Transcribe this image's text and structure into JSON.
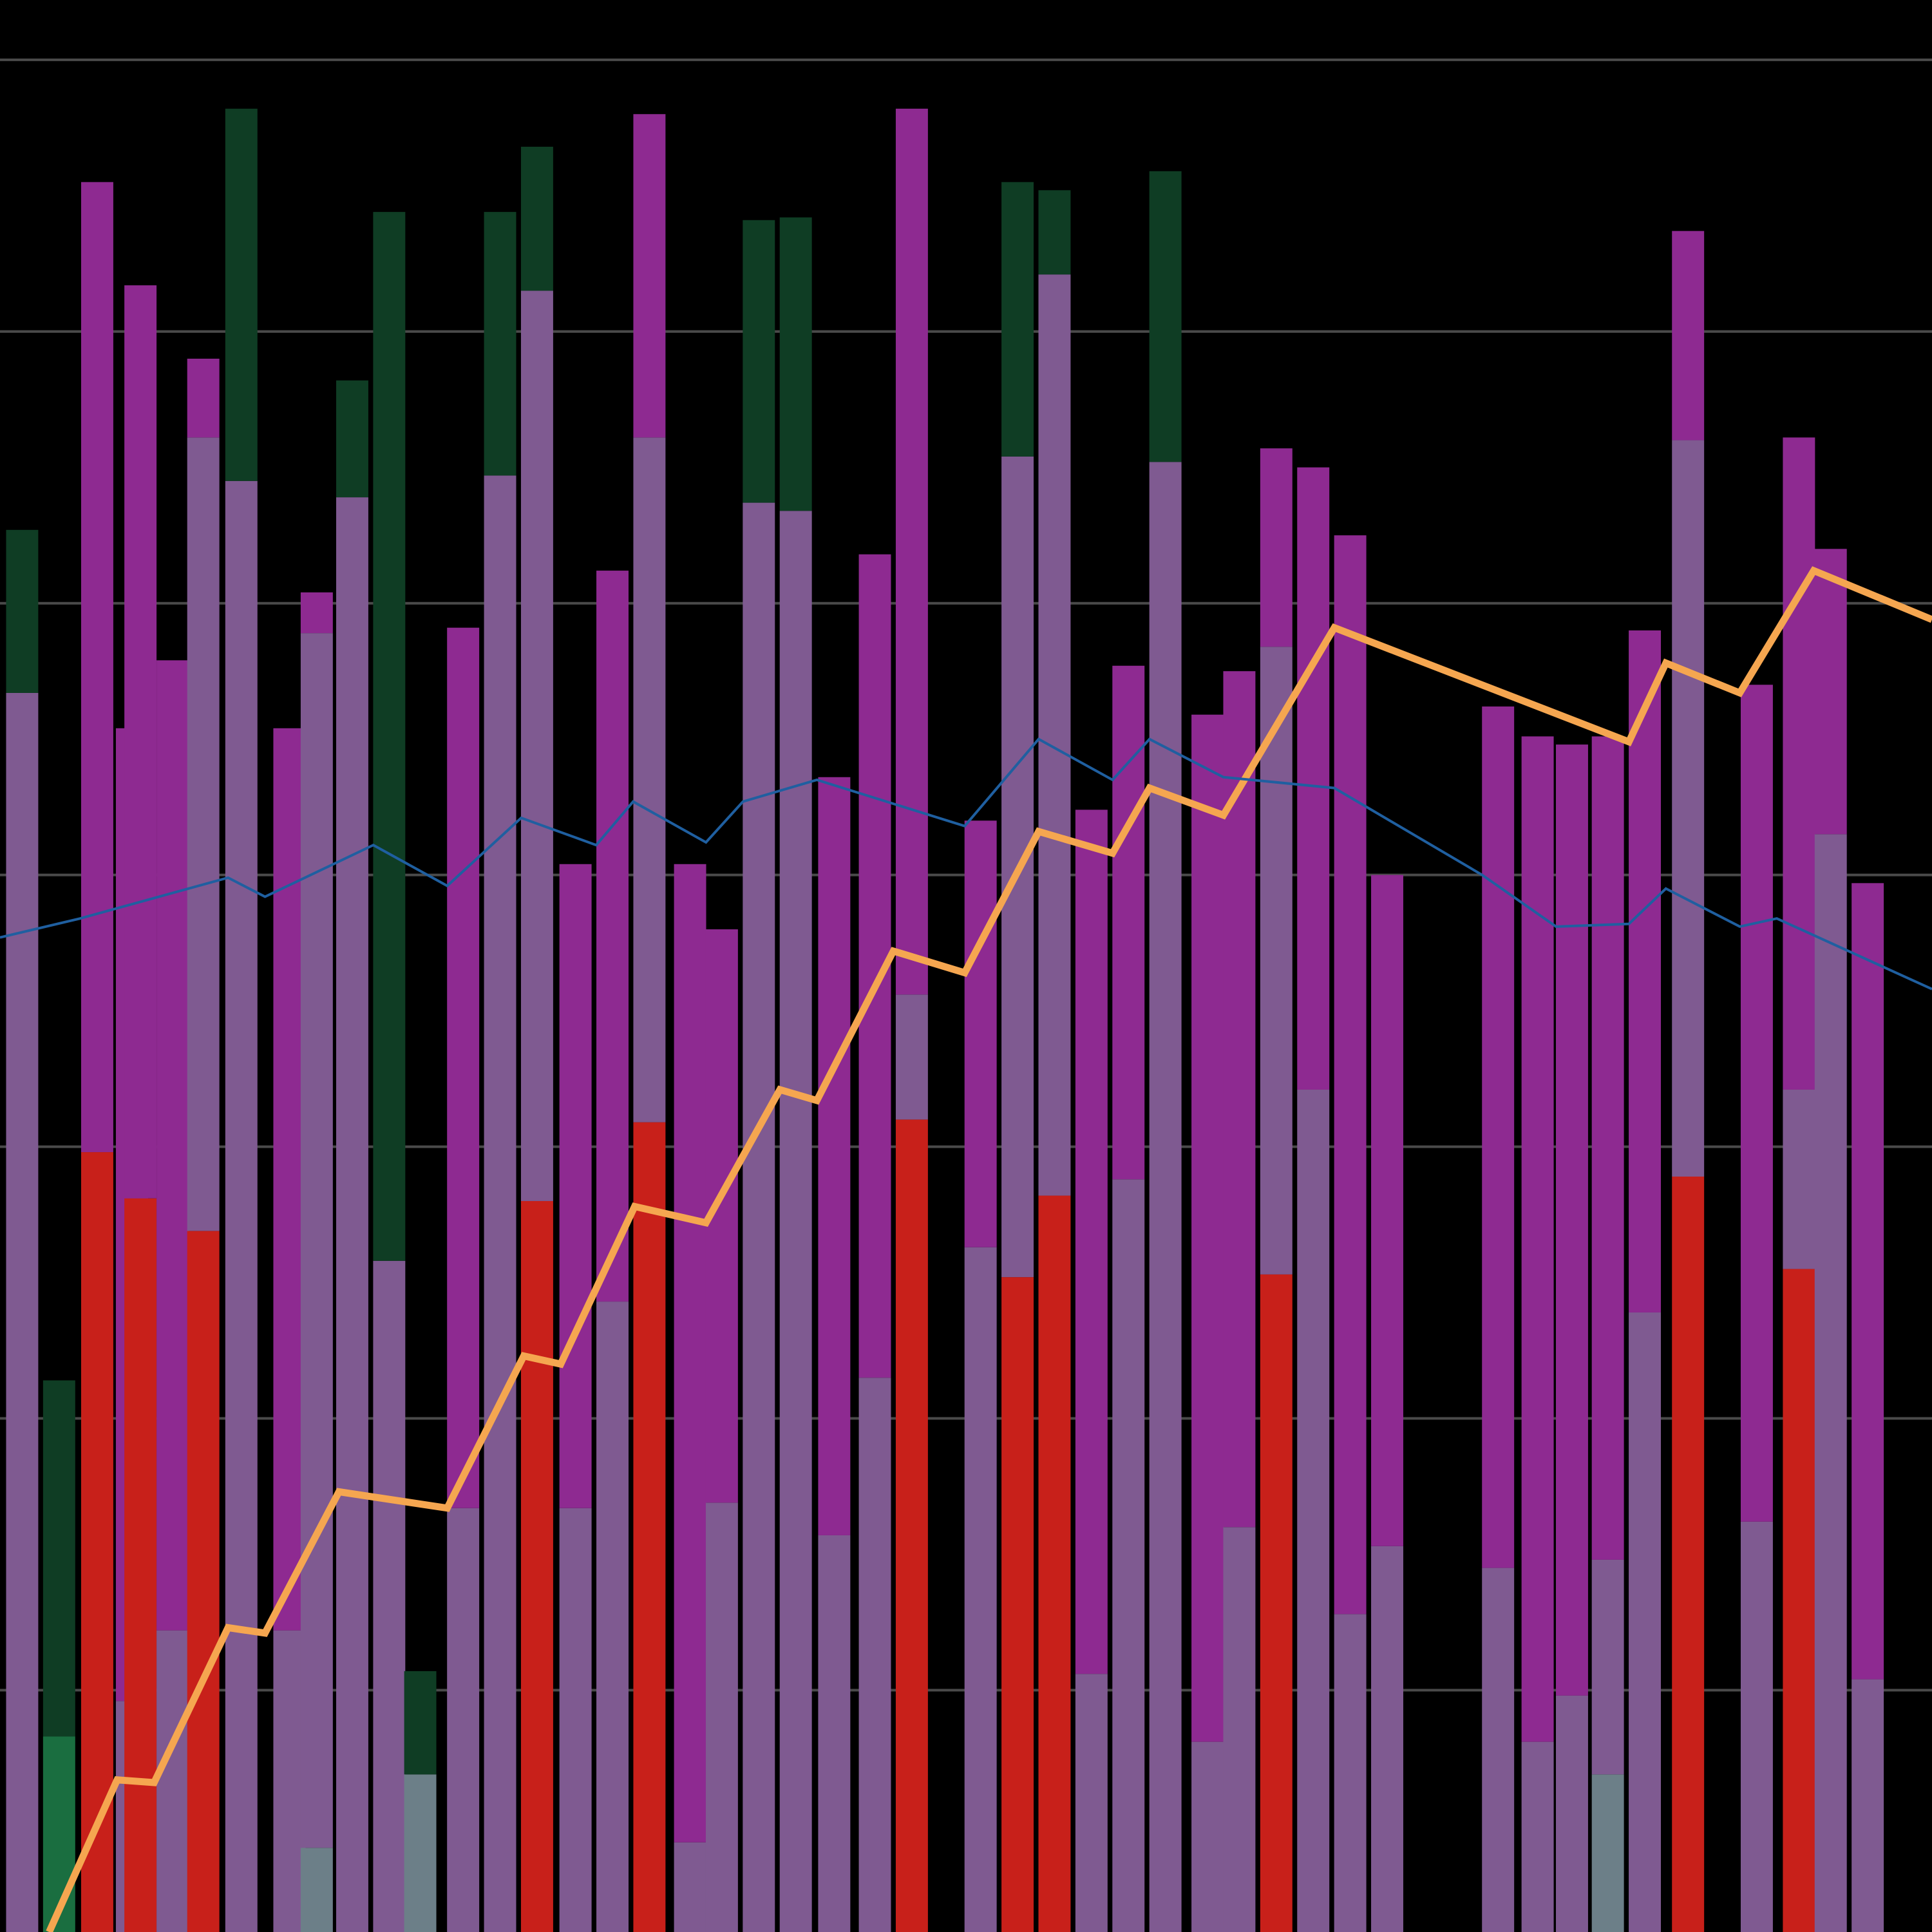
{
  "chart_data": {
    "type": "bar",
    "stacked": true,
    "title": "",
    "xlabel": "",
    "ylabel": "",
    "xlim": [
      0,
      52.27
    ],
    "ylim": [
      0.11,
      7.22
    ],
    "grid": {
      "horizontal": true,
      "values": [
        1,
        2,
        3,
        4,
        5,
        6,
        7
      ],
      "color": "#4a4a4a"
    },
    "background": "#000000",
    "colors": {
      "red": "#c8201a",
      "mauve": "#7f5a91",
      "magenta": "#8e2a91",
      "dark_green": "#0f3d24",
      "green": "#1a6e40",
      "grey": "#6c7f88",
      "orange_line": "#f5a650",
      "blue_line": "#1f5fa0"
    },
    "bar_width": 0.87,
    "bars": [
      {
        "x": 0.6,
        "segments": [
          [
            "mauve",
            4.67
          ],
          [
            "dark_green",
            5.27
          ]
        ]
      },
      {
        "x": 1.6,
        "segments": [
          [
            "green",
            0.83
          ],
          [
            "dark_green",
            2.14
          ]
        ]
      },
      {
        "x": 2.63,
        "segments": [
          [
            "red",
            2.98
          ],
          [
            "magenta",
            6.55
          ]
        ]
      },
      {
        "x": 3.57,
        "segments": [
          [
            "mauve",
            0.96
          ],
          [
            "magenta",
            4.54
          ]
        ]
      },
      {
        "x": 3.8,
        "segments": [
          [
            "red",
            2.81
          ],
          [
            "magenta",
            6.17
          ]
        ]
      },
      {
        "x": 4.67,
        "segments": [
          [
            "mauve",
            1.22
          ],
          [
            "magenta",
            4.79
          ]
        ]
      },
      {
        "x": 5.5,
        "segments": [
          [
            "red",
            2.69
          ],
          [
            "mauve",
            5.61
          ],
          [
            "magenta",
            5.9
          ]
        ]
      },
      {
        "x": 6.53,
        "segments": [
          [
            "mauve",
            5.45
          ],
          [
            "dark_green",
            6.82
          ]
        ]
      },
      {
        "x": 7.83,
        "segments": [
          [
            "mauve",
            1.22
          ],
          [
            "magenta",
            4.54
          ]
        ]
      },
      {
        "x": 8.57,
        "segments": [
          [
            "grey",
            0.42
          ],
          [
            "mauve",
            4.89
          ],
          [
            "magenta",
            5.04
          ]
        ]
      },
      {
        "x": 9.53,
        "segments": [
          [
            "mauve",
            5.39
          ],
          [
            "dark_green",
            5.82
          ]
        ]
      },
      {
        "x": 10.53,
        "segments": [
          [
            "mauve",
            2.58
          ],
          [
            "dark_green",
            6.44
          ]
        ]
      },
      {
        "x": 11.37,
        "segments": [
          [
            "grey",
            0.69
          ],
          [
            "dark_green",
            1.07
          ]
        ]
      },
      {
        "x": 12.53,
        "segments": [
          [
            "mauve",
            1.67
          ],
          [
            "magenta",
            4.91
          ]
        ]
      },
      {
        "x": 13.53,
        "segments": [
          [
            "mauve",
            5.47
          ],
          [
            "dark_green",
            6.44
          ]
        ]
      },
      {
        "x": 14.53,
        "segments": [
          [
            "red",
            2.8
          ],
          [
            "mauve",
            6.15
          ],
          [
            "dark_green",
            6.68
          ]
        ]
      },
      {
        "x": 15.57,
        "segments": [
          [
            "mauve",
            1.67
          ],
          [
            "magenta",
            4.04
          ]
        ]
      },
      {
        "x": 16.57,
        "segments": [
          [
            "mauve",
            2.43
          ],
          [
            "magenta",
            5.12
          ]
        ]
      },
      {
        "x": 17.57,
        "segments": [
          [
            "red",
            3.09
          ],
          [
            "mauve",
            5.61
          ],
          [
            "magenta",
            6.8
          ]
        ]
      },
      {
        "x": 18.67,
        "segments": [
          [
            "mauve",
            0.44
          ],
          [
            "magenta",
            4.04
          ]
        ]
      },
      {
        "x": 19.53,
        "segments": [
          [
            "mauve",
            1.69
          ],
          [
            "magenta",
            3.8
          ]
        ]
      },
      {
        "x": 20.53,
        "segments": [
          [
            "mauve",
            5.37
          ],
          [
            "dark_green",
            6.41
          ]
        ]
      },
      {
        "x": 21.53,
        "segments": [
          [
            "mauve",
            5.34
          ],
          [
            "dark_green",
            6.42
          ]
        ]
      },
      {
        "x": 22.57,
        "segments": [
          [
            "mauve",
            1.57
          ],
          [
            "magenta",
            4.36
          ]
        ]
      },
      {
        "x": 23.67,
        "segments": [
          [
            "mauve",
            2.15
          ],
          [
            "magenta",
            5.18
          ]
        ]
      },
      {
        "x": 24.67,
        "segments": [
          [
            "red",
            3.1
          ],
          [
            "mauve",
            3.56
          ],
          [
            "magenta",
            6.82
          ]
        ]
      },
      {
        "x": 26.53,
        "segments": [
          [
            "mauve",
            2.63
          ],
          [
            "magenta",
            4.2
          ]
        ]
      },
      {
        "x": 27.53,
        "segments": [
          [
            "red",
            2.52
          ],
          [
            "mauve",
            5.54
          ],
          [
            "dark_green",
            6.55
          ]
        ]
      },
      {
        "x": 28.53,
        "segments": [
          [
            "red",
            2.82
          ],
          [
            "mauve",
            6.21
          ],
          [
            "dark_green",
            6.52
          ]
        ]
      },
      {
        "x": 29.53,
        "segments": [
          [
            "mauve",
            1.06
          ],
          [
            "magenta",
            4.24
          ]
        ]
      },
      {
        "x": 30.53,
        "segments": [
          [
            "mauve",
            2.88
          ],
          [
            "magenta",
            4.77
          ]
        ]
      },
      {
        "x": 31.53,
        "segments": [
          [
            "mauve",
            5.52
          ],
          [
            "dark_green",
            6.59
          ]
        ]
      },
      {
        "x": 32.67,
        "segments": [
          [
            "mauve",
            0.81
          ],
          [
            "magenta",
            4.59
          ]
        ]
      },
      {
        "x": 33.53,
        "segments": [
          [
            "mauve",
            1.6
          ],
          [
            "magenta",
            4.75
          ]
        ]
      },
      {
        "x": 34.53,
        "segments": [
          [
            "red",
            2.53
          ],
          [
            "mauve",
            4.84
          ],
          [
            "magenta",
            5.57
          ]
        ]
      },
      {
        "x": 35.53,
        "segments": [
          [
            "mauve",
            3.21
          ],
          [
            "magenta",
            5.5
          ]
        ]
      },
      {
        "x": 36.53,
        "segments": [
          [
            "mauve",
            1.28
          ],
          [
            "magenta",
            5.25
          ]
        ]
      },
      {
        "x": 37.53,
        "segments": [
          [
            "mauve",
            1.53
          ],
          [
            "magenta",
            4.0
          ]
        ]
      },
      {
        "x": 40.53,
        "segments": [
          [
            "mauve",
            1.45
          ],
          [
            "magenta",
            4.62
          ]
        ]
      },
      {
        "x": 41.6,
        "segments": [
          [
            "mauve",
            0.81
          ],
          [
            "magenta",
            4.51
          ]
        ]
      },
      {
        "x": 42.53,
        "segments": [
          [
            "mauve",
            0.98
          ],
          [
            "magenta",
            4.48
          ]
        ]
      },
      {
        "x": 43.5,
        "segments": [
          [
            "grey",
            0.69
          ],
          [
            "mauve",
            1.48
          ],
          [
            "magenta",
            4.51
          ]
        ]
      },
      {
        "x": 44.5,
        "segments": [
          [
            "mauve",
            2.39
          ],
          [
            "magenta",
            4.9
          ]
        ]
      },
      {
        "x": 45.67,
        "segments": [
          [
            "red",
            2.89
          ],
          [
            "mauve",
            5.6
          ],
          [
            "magenta",
            6.37
          ]
        ]
      },
      {
        "x": 47.53,
        "segments": [
          [
            "mauve",
            1.62
          ],
          [
            "magenta",
            4.7
          ]
        ]
      },
      {
        "x": 48.67,
        "segments": [
          [
            "red",
            2.55
          ],
          [
            "mauve",
            3.21
          ],
          [
            "magenta",
            5.61
          ]
        ]
      },
      {
        "x": 49.53,
        "segments": [
          [
            "mauve",
            4.15
          ],
          [
            "magenta",
            5.2
          ]
        ]
      },
      {
        "x": 50.53,
        "segments": [
          [
            "mauve",
            1.04
          ],
          [
            "magenta",
            3.97
          ]
        ]
      }
    ],
    "lines": [
      {
        "color": "orange_line",
        "x": [
          1.33,
          3.17,
          4.17,
          6.17,
          7.17,
          9.17,
          12.1,
          14.17,
          15.17,
          17.17,
          19.1,
          21.1,
          22.1,
          24.17,
          26.1,
          28.1,
          30.1,
          31.1,
          33.1,
          36.1,
          44.07,
          45.07,
          47.07,
          49.07,
          52.27
        ],
        "y": [
          0.11,
          0.67,
          0.66,
          1.23,
          1.21,
          1.73,
          1.67,
          2.23,
          2.2,
          2.78,
          2.72,
          3.21,
          3.17,
          3.72,
          3.64,
          4.16,
          4.08,
          4.32,
          4.22,
          4.91,
          4.49,
          4.78,
          4.67,
          5.12,
          4.94
        ]
      },
      {
        "color": "blue_line",
        "x": [
          0,
          2.17,
          6.17,
          7.17,
          10.1,
          12.1,
          14.1,
          16.13,
          17.13,
          19.1,
          20.1,
          22.1,
          26.1,
          28.1,
          30.1,
          31.1,
          33.1,
          36.1,
          40.1,
          42.1,
          44.07,
          45.07,
          47.07,
          48.07,
          52.27
        ],
        "y": [
          3.77,
          3.84,
          3.99,
          3.92,
          4.11,
          3.96,
          4.21,
          4.11,
          4.27,
          4.12,
          4.27,
          4.35,
          4.18,
          4.5,
          4.35,
          4.5,
          4.36,
          4.32,
          4.0,
          3.81,
          3.82,
          3.95,
          3.81,
          3.84,
          3.58
        ]
      }
    ]
  }
}
